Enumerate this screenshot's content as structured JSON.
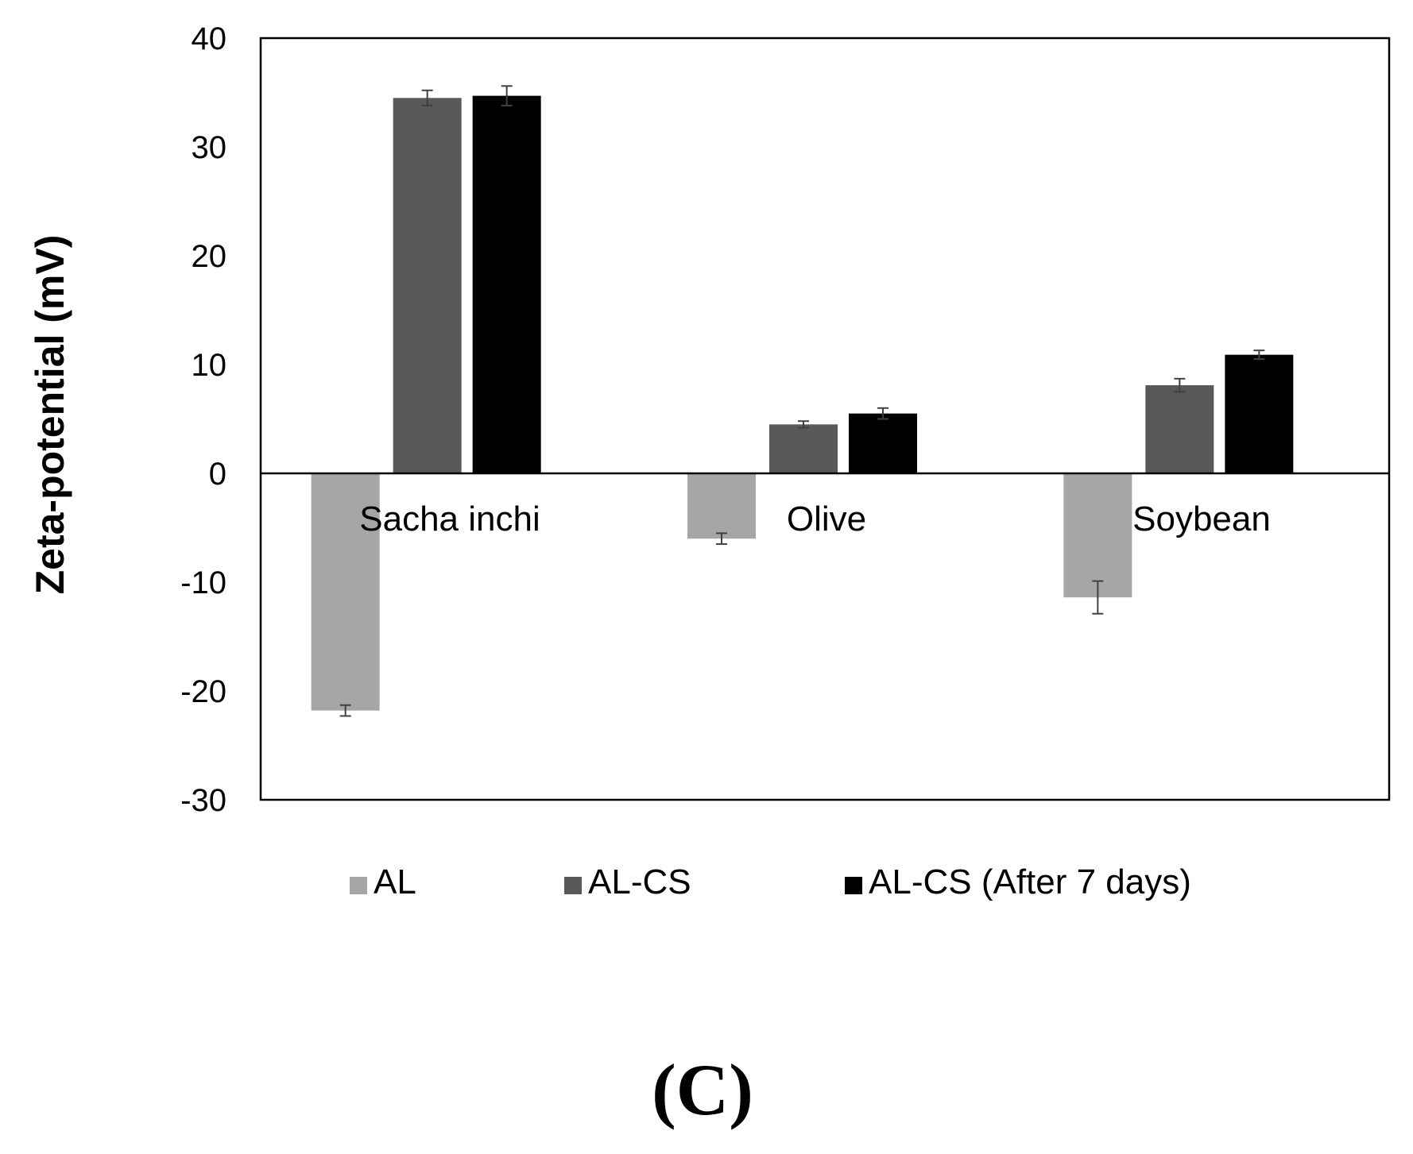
{
  "chart_data": {
    "type": "bar",
    "title": "",
    "xlabel": "",
    "ylabel": "Zeta-potential (mV)",
    "ylim": [
      -30,
      40
    ],
    "yticks": [
      40,
      30,
      20,
      10,
      0,
      -10,
      -20,
      -30
    ],
    "grid": false,
    "legend_position": "bottom",
    "categories": [
      "Sacha inchi",
      "Olive",
      "Soybean"
    ],
    "series": [
      {
        "name": "AL",
        "color": "#a6a6a6",
        "values": [
          -21.8,
          -6.0,
          -11.4
        ],
        "errors": [
          0.5,
          0.5,
          1.5
        ]
      },
      {
        "name": "AL-CS",
        "color": "#595959",
        "values": [
          34.5,
          4.5,
          8.1
        ],
        "errors": [
          0.7,
          0.3,
          0.6
        ]
      },
      {
        "name": "AL-CS (After 7 days)",
        "color": "#000000",
        "values": [
          34.7,
          5.5,
          10.9
        ],
        "errors": [
          0.9,
          0.5,
          0.4
        ]
      }
    ],
    "panel_label": "(C)"
  }
}
